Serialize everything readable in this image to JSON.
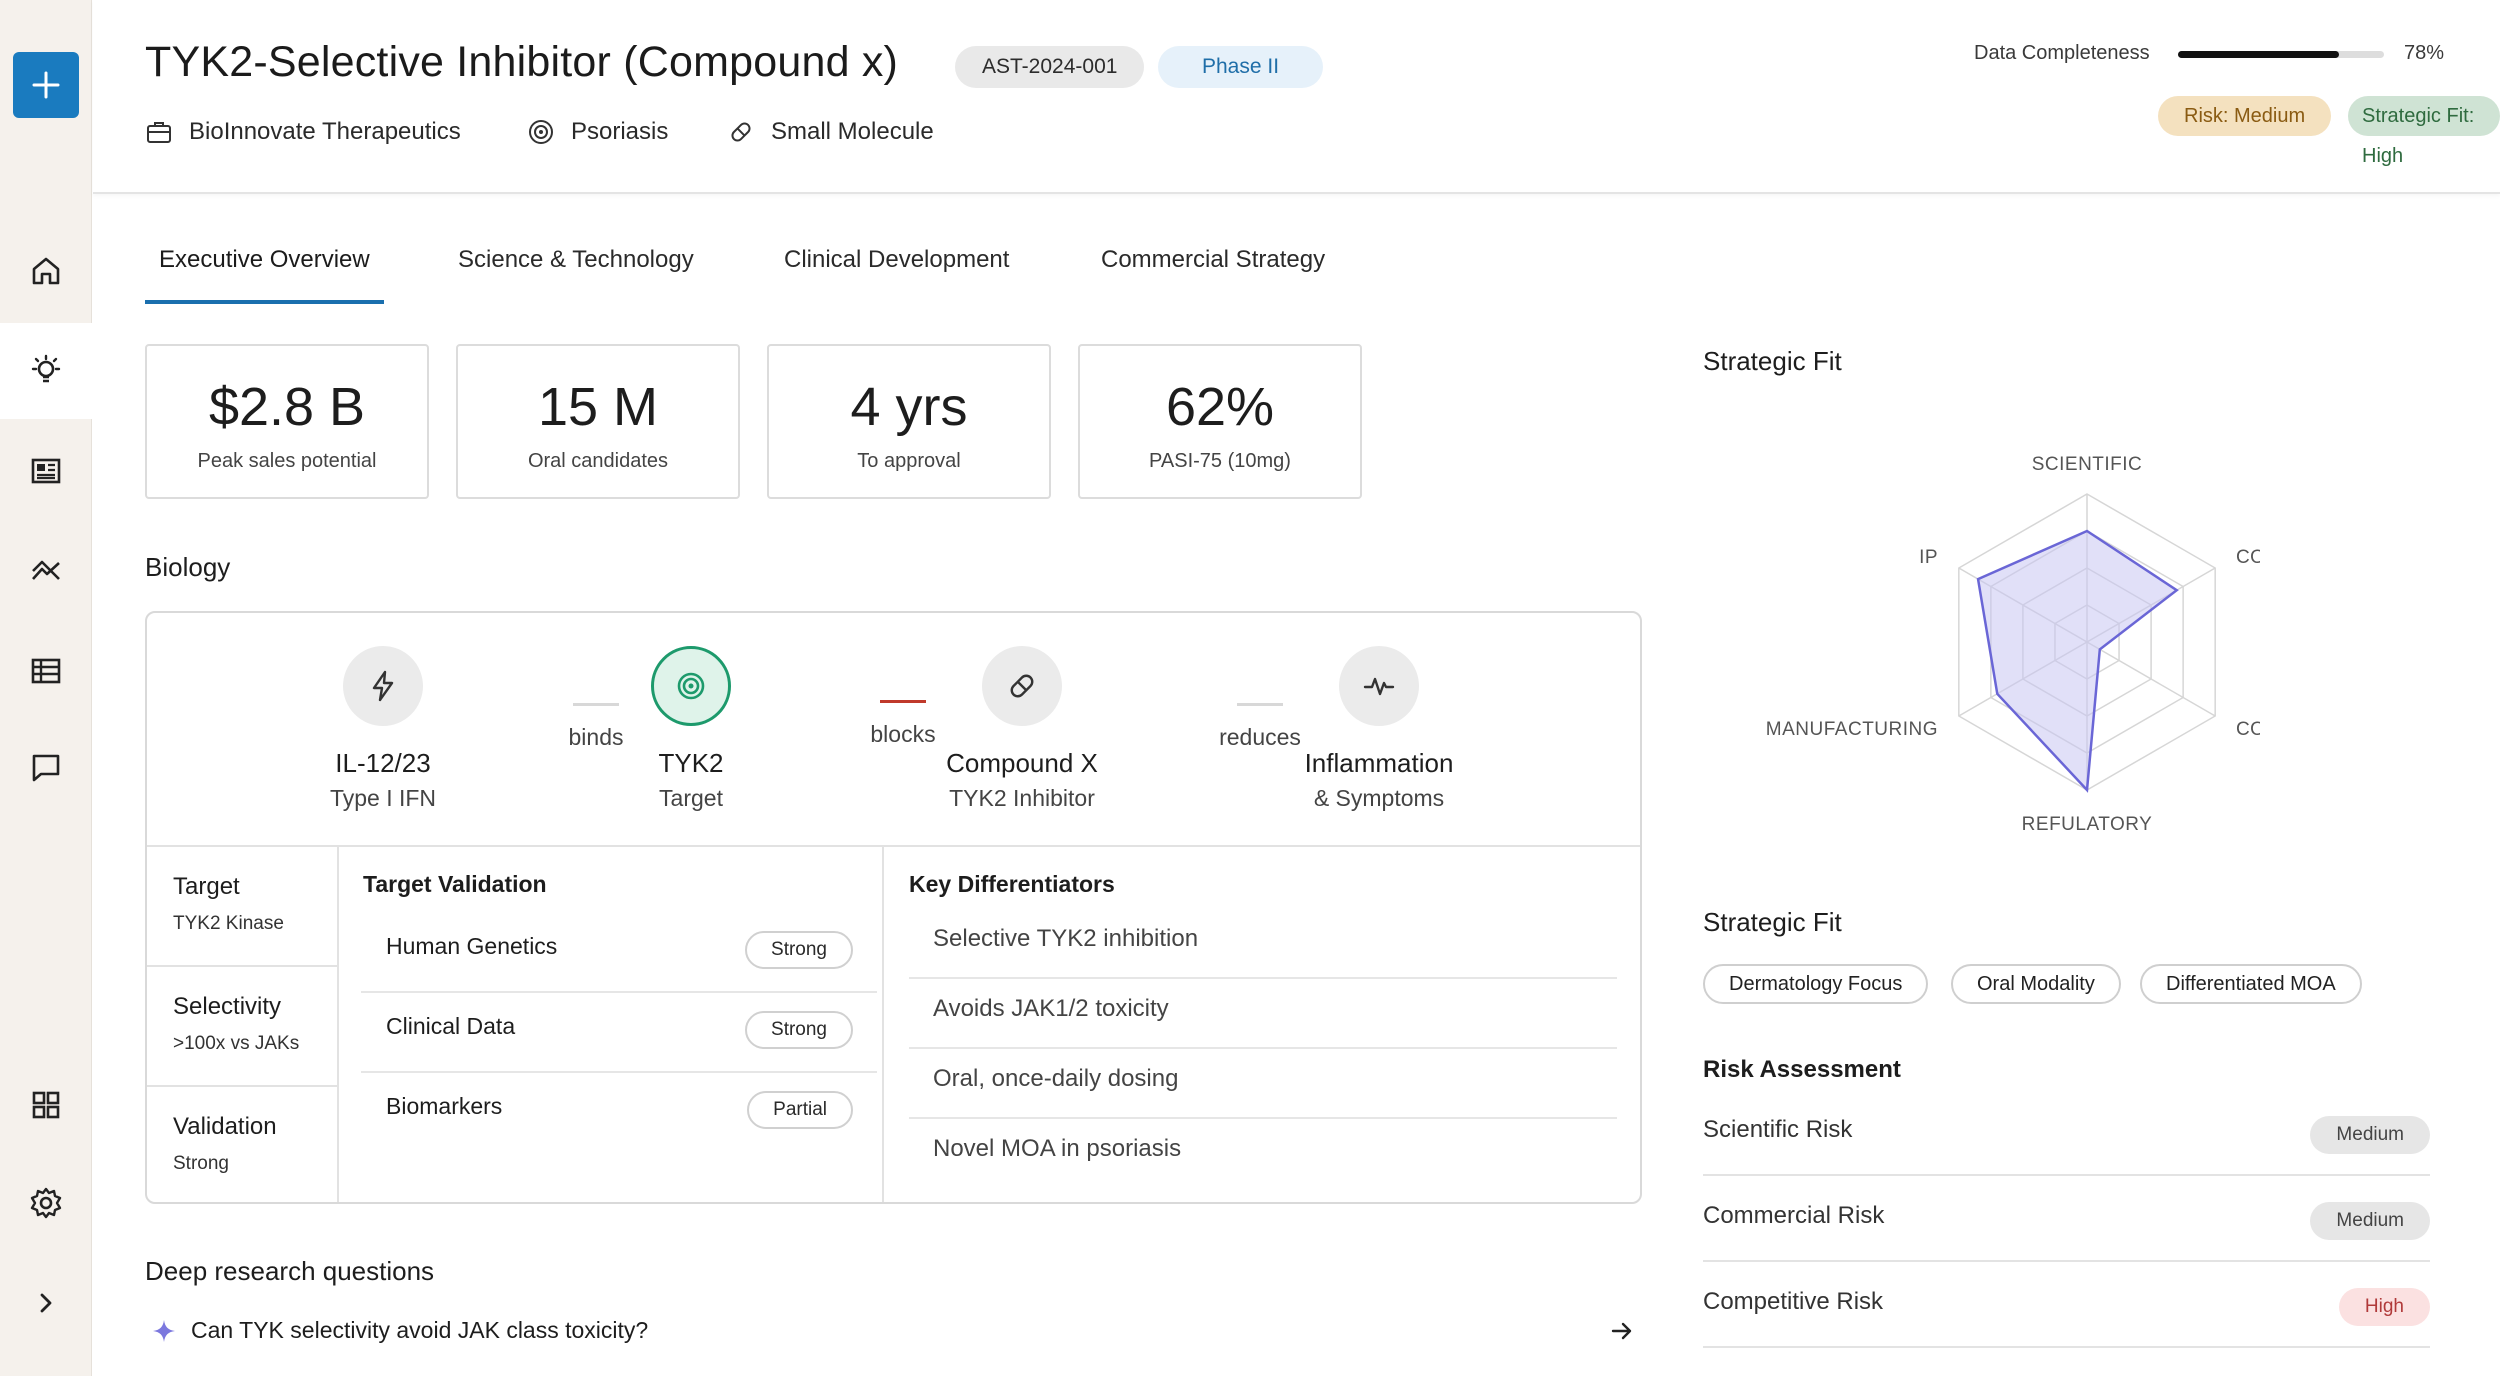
{
  "header": {
    "title": "TYK2-Selective Inhibitor (Compound x)",
    "asset_id": "AST-2024-001",
    "phase": "Phase II",
    "company": "BioInnovate Therapeutics",
    "indication": "Psoriasis",
    "modality": "Small Molecule",
    "completeness_label": "Data Completeness",
    "completeness_value": "78%",
    "completeness_fraction": 0.78,
    "risk_badge": "Risk: Medium",
    "fit_badge": "Strategic Fit: High"
  },
  "tabs": [
    {
      "label": "Executive Overview",
      "active": true
    },
    {
      "label": "Science & Technology",
      "active": false
    },
    {
      "label": "Clinical Development",
      "active": false
    },
    {
      "label": "Commercial Strategy",
      "active": false
    }
  ],
  "kpis": [
    {
      "value": "$2.8 B",
      "label": "Peak sales potential"
    },
    {
      "value": "15 M",
      "label": "Oral candidates"
    },
    {
      "value": "4 yrs",
      "label": "To approval"
    },
    {
      "value": "62%",
      "label": "PASI-75 (10mg)"
    }
  ],
  "biology": {
    "title": "Biology",
    "pathway": {
      "nodes": [
        {
          "name": "IL-12/23",
          "sub": "Type I IFN",
          "icon": "bolt-icon"
        },
        {
          "name": "TYK2",
          "sub": "Target",
          "icon": "target-icon"
        },
        {
          "name": "Compound X",
          "sub": "TYK2 Inhibitor",
          "icon": "pill-icon"
        },
        {
          "name": "Inflammation",
          "sub": "& Symptoms",
          "icon": "pulse-icon"
        }
      ],
      "connectors": [
        "binds",
        "blocks",
        "reduces"
      ]
    },
    "summary": [
      {
        "title": "Target",
        "value": "TYK2 Kinase"
      },
      {
        "title": "Selectivity",
        "value": ">100x vs JAKs"
      },
      {
        "title": "Validation",
        "value": "Strong"
      }
    ],
    "target_validation": {
      "title": "Target Validation",
      "rows": [
        {
          "label": "Human Genetics",
          "status": "Strong"
        },
        {
          "label": "Clinical Data",
          "status": "Strong"
        },
        {
          "label": "Biomarkers",
          "status": "Partial"
        }
      ]
    },
    "key_differentiators": {
      "title": "Key Differentiators",
      "items": [
        "Selective TYK2 inhibition",
        "Avoids JAK1/2 toxicity",
        "Oral, once-daily dosing",
        "Novel MOA in psoriasis"
      ]
    }
  },
  "deep_research": {
    "title": "Deep research questions",
    "questions": [
      "Can TYK selectivity avoid JAK class toxicity?"
    ]
  },
  "strategic_fit_chart": {
    "title": "Strategic Fit",
    "axes": [
      "SCIENTIFIC",
      "COMMERCIAL",
      "COMPETITIVE",
      "REFULATORY",
      "MANUFACTURING",
      "IP"
    ],
    "values": [
      0.75,
      0.7,
      0.1,
      1.0,
      0.7,
      0.85
    ],
    "fill_color": "#c9c7f2",
    "stroke_color": "#6a66d6"
  },
  "strategic_fit_tags": {
    "title": "Strategic Fit",
    "tags": [
      "Dermatology Focus",
      "Oral Modality",
      "Differentiated MOA"
    ]
  },
  "risk_assessment": {
    "title": "Risk Assessment",
    "rows": [
      {
        "label": "Scientific Risk",
        "level": "Medium"
      },
      {
        "label": "Commercial Risk",
        "level": "Medium"
      },
      {
        "label": "Competitive Risk",
        "level": "High"
      }
    ]
  },
  "colors": {
    "accent": "#1a7bbf",
    "tab_underline": "#1a6fae",
    "target_green": "#1d9a6c",
    "risk_medium": "#f4e1bf",
    "fit_high": "#cfe3d4",
    "risk_high": "#fbe1e1"
  }
}
